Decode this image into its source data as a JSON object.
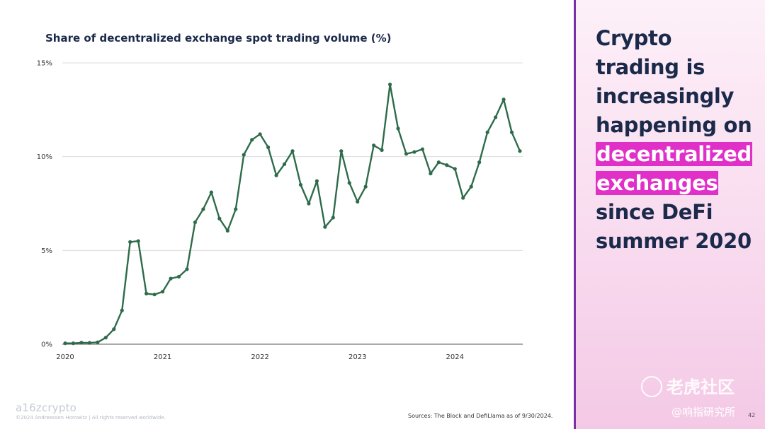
{
  "chart_data": {
    "type": "line",
    "title": "Share of decentralized exchange spot trading volume (%)",
    "xlabel": "",
    "ylabel": "",
    "y_ticks": [
      "0%",
      "5%",
      "10%",
      "15%"
    ],
    "y_tick_values": [
      0,
      5,
      10,
      15
    ],
    "x_ticks": [
      "2020",
      "2021",
      "2022",
      "2023",
      "2024"
    ],
    "x_tick_dates": [
      "2020-01",
      "2021-01",
      "2022-01",
      "2023-01",
      "2024-01"
    ],
    "ylim": [
      0,
      15
    ],
    "xlim": [
      "2020-01",
      "2024-09"
    ],
    "grid": true,
    "legend": "none",
    "series": [
      {
        "color": "#2e6b4a",
        "x": [
          "2020-01",
          "2020-02",
          "2020-03",
          "2020-04",
          "2020-05",
          "2020-06",
          "2020-07",
          "2020-08",
          "2020-09",
          "2020-10",
          "2020-11",
          "2020-12",
          "2021-01",
          "2021-02",
          "2021-03",
          "2021-04",
          "2021-05",
          "2021-06",
          "2021-07",
          "2021-08",
          "2021-09",
          "2021-10",
          "2021-11",
          "2021-12",
          "2022-01",
          "2022-02",
          "2022-03",
          "2022-04",
          "2022-05",
          "2022-06",
          "2022-07",
          "2022-08",
          "2022-09",
          "2022-10",
          "2022-11",
          "2022-12",
          "2023-01",
          "2023-02",
          "2023-03",
          "2023-04",
          "2023-05",
          "2023-06",
          "2023-07",
          "2023-08",
          "2023-09",
          "2023-10",
          "2023-11",
          "2023-12",
          "2024-01",
          "2024-02",
          "2024-03",
          "2024-04",
          "2024-05",
          "2024-06",
          "2024-07",
          "2024-08",
          "2024-09"
        ],
        "values": [
          0.05,
          0.05,
          0.08,
          0.07,
          0.1,
          0.35,
          0.8,
          1.8,
          5.45,
          5.5,
          2.7,
          2.65,
          2.8,
          3.5,
          3.6,
          4.0,
          6.5,
          7.2,
          8.1,
          6.7,
          6.05,
          7.2,
          10.1,
          10.9,
          11.2,
          10.5,
          9.0,
          9.6,
          10.3,
          8.5,
          7.5,
          8.7,
          6.25,
          6.75,
          10.3,
          8.6,
          7.6,
          8.4,
          10.6,
          10.35,
          13.85,
          11.5,
          10.15,
          10.25,
          10.4,
          9.1,
          9.7,
          9.55,
          9.35,
          7.8,
          8.4,
          9.7,
          11.3,
          12.1,
          13.05,
          11.3,
          10.3
        ]
      }
    ]
  },
  "footer": {
    "logo": "a16zcrypto",
    "copyright": "©2024 Andreessen Horowitz  |  All rights reserved worldwide.",
    "sources": "Sources: The Block and DefiLlama as of 9/30/2024.",
    "page_number": "42"
  },
  "side_panel": {
    "headline_lines": [
      "Crypto",
      "trading is",
      "increasingly",
      "happening on"
    ],
    "highlight_lines": [
      "decentralized",
      "exchanges"
    ],
    "tail_lines": [
      "since DeFi",
      "summer 2020"
    ]
  },
  "watermark": {
    "text": "老虎社区",
    "subtext": "@响指研究所"
  },
  "colors": {
    "line": "#2e6b4a",
    "highlight": "#e030c8",
    "headline_text": "#1b2a4a",
    "panel_border": "#7b2fa8"
  }
}
